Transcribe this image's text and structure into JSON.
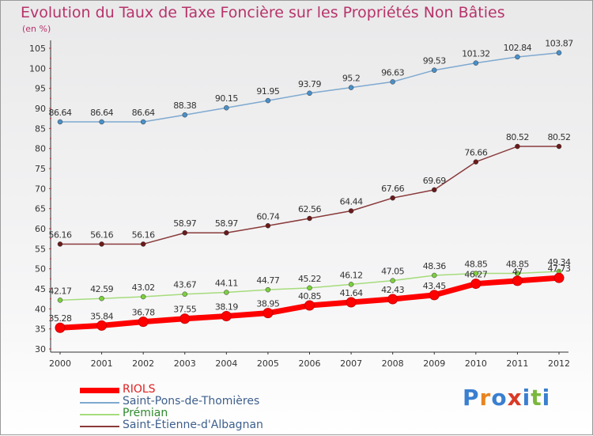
{
  "title": "Evolution du Taux de Taxe Foncière sur les Propriétés Non Bâties",
  "unit_label": "(en %)",
  "logo": {
    "text": "Proxiti",
    "colors": [
      "#3a7fd0",
      "#e8841f",
      "#3a7fd0",
      "#d93a26",
      "#3a7fd0",
      "#7ab83c",
      "#3a7fd0"
    ]
  },
  "chart_data": {
    "type": "line",
    "x": [
      "2000",
      "2001",
      "2002",
      "2003",
      "2004",
      "2005",
      "2006",
      "2007",
      "2008",
      "2009",
      "2010",
      "2011",
      "2012"
    ],
    "ylim": [
      30,
      105
    ],
    "yticks": [
      30,
      35,
      40,
      45,
      50,
      55,
      60,
      65,
      70,
      75,
      80,
      85,
      90,
      95,
      100,
      105
    ],
    "grid": false,
    "legend_position": "bottom-left",
    "series": [
      {
        "name": "Saint-Pons-de-Thomières",
        "color": "#7fa9cf",
        "marker": "#4a90c8",
        "width": 1.5,
        "values": [
          86.64,
          86.64,
          86.64,
          88.38,
          90.15,
          91.95,
          93.79,
          95.2,
          96.63,
          99.53,
          101.32,
          102.84,
          103.87
        ],
        "labels": [
          "86.64",
          "86.64",
          "86.64",
          "88.38",
          "90.15",
          "91.95",
          "93.79",
          "95.2",
          "96.63",
          "99.53",
          "101.32",
          "102.84",
          "103.87"
        ]
      },
      {
        "name": "Saint-Étienne-d'Albagnan",
        "color": "#8a3a3a",
        "marker": "#6a1a1a",
        "width": 1.5,
        "values": [
          56.16,
          56.16,
          56.16,
          58.97,
          58.97,
          60.74,
          62.56,
          64.44,
          67.66,
          69.69,
          76.66,
          80.52,
          80.52
        ],
        "labels": [
          "56.16",
          "56.16",
          "56.16",
          "58.97",
          "58.97",
          "60.74",
          "62.56",
          "64.44",
          "67.66",
          "69.69",
          "76.66",
          "80.52",
          "80.52"
        ]
      },
      {
        "name": "Prémian",
        "color": "#a6dc7c",
        "marker": "#7ccf3e",
        "width": 1.5,
        "values": [
          42.17,
          42.59,
          43.02,
          43.67,
          44.11,
          44.77,
          45.22,
          46.12,
          47.05,
          48.36,
          48.85,
          48.85,
          49.34
        ],
        "labels": [
          "42.17",
          "42.59",
          "43.02",
          "43.67",
          "44.11",
          "44.77",
          "45.22",
          "46.12",
          "47.05",
          "48.36",
          "48.85",
          "48.85",
          "49.34"
        ]
      },
      {
        "name": "RIOLS",
        "color": "#ff0000",
        "marker": "#ff0000",
        "width": 7,
        "values": [
          35.28,
          35.84,
          36.78,
          37.55,
          38.19,
          38.95,
          40.85,
          41.64,
          42.43,
          43.45,
          46.27,
          47,
          47.73
        ],
        "labels": [
          "35.28",
          "35.84",
          "36.78",
          "37.55",
          "38.19",
          "38.95",
          "40.85",
          "41.64",
          "42.43",
          "43.45",
          "46.27",
          "47",
          "47.73"
        ]
      }
    ],
    "legend": [
      "RIOLS",
      "Saint-Pons-de-Thomières",
      "Prémian",
      "Saint-Étienne-d'Albagnan"
    ]
  }
}
